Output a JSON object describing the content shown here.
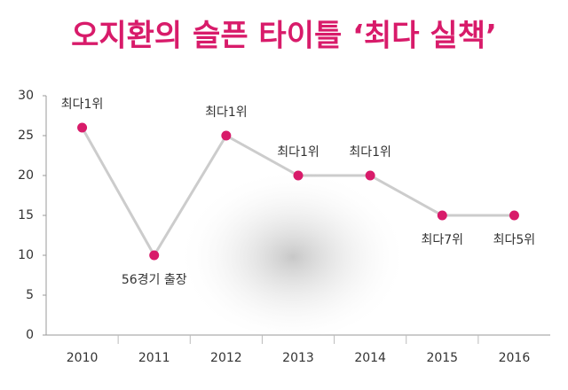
{
  "chart_data": {
    "type": "line",
    "title": "오지환의 슬픈 타이틀 ‘최다 실책’",
    "categories": [
      "2010",
      "2011",
      "2012",
      "2013",
      "2014",
      "2015",
      "2016"
    ],
    "series": [
      {
        "color": "#d81b6a",
        "line_color": "#cccccc",
        "values": [
          26,
          10,
          25,
          20,
          20,
          15,
          15
        ]
      }
    ],
    "point_labels": [
      "최다1위",
      "56경기 출장",
      "최다1위",
      "최다1위",
      "최다1위",
      "최다7위",
      "최다5위"
    ],
    "label_positions": [
      "above",
      "below",
      "above",
      "above",
      "above",
      "below",
      "below"
    ],
    "ylim": [
      0,
      30
    ],
    "yticks": [
      0,
      5,
      10,
      15,
      20,
      25,
      30
    ],
    "grid": false
  }
}
